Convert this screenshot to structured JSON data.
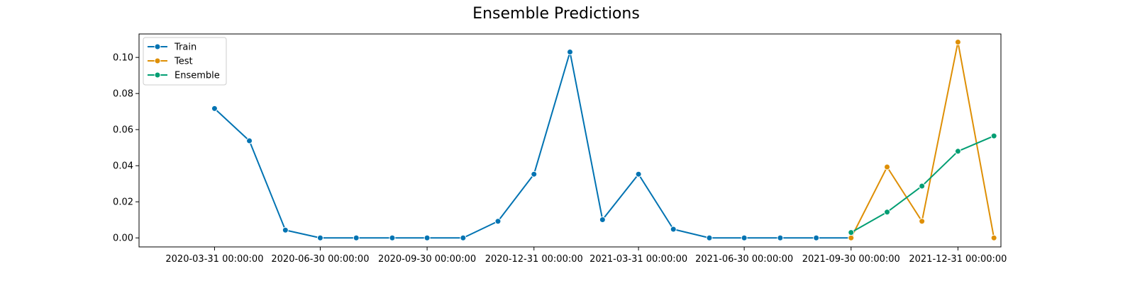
{
  "chart_data": {
    "type": "line",
    "title": "Ensemble Predictions",
    "xlabel": "",
    "ylabel": "",
    "ylim": [
      -0.005,
      0.113
    ],
    "yticks": [
      0.0,
      0.02,
      0.04,
      0.06,
      0.08,
      0.1
    ],
    "ytick_labels": [
      "0.00",
      "0.02",
      "0.04",
      "0.06",
      "0.08",
      "0.10"
    ],
    "xlim": [
      "2020-01-26",
      "2022-02-06"
    ],
    "xticks": [
      "2020-03-31",
      "2020-06-30",
      "2020-09-30",
      "2020-12-31",
      "2021-03-31",
      "2021-06-30",
      "2021-09-30",
      "2021-12-31"
    ],
    "xtick_labels": [
      "2020-03-31 00:00:00",
      "2020-06-30 00:00:00",
      "2020-09-30 00:00:00",
      "2020-12-31 00:00:00",
      "2021-03-31 00:00:00",
      "2021-06-30 00:00:00",
      "2021-09-30 00:00:00",
      "2021-12-31 00:00:00"
    ],
    "grid": false,
    "legend_position": "upper-left",
    "series": [
      {
        "name": "Train",
        "color": "#0173b2",
        "x": [
          "2020-03-31",
          "2020-04-30",
          "2020-05-31",
          "2020-06-30",
          "2020-07-31",
          "2020-08-31",
          "2020-09-30",
          "2020-10-31",
          "2020-11-30",
          "2020-12-31",
          "2021-01-31",
          "2021-02-28",
          "2021-03-31",
          "2021-04-30",
          "2021-05-31",
          "2021-06-30",
          "2021-07-31",
          "2021-08-31",
          "2021-09-30"
        ],
        "y": [
          0.0717,
          0.0538,
          0.0043,
          0.0,
          0.0,
          0.0,
          0.0,
          0.0,
          0.0092,
          0.0353,
          0.103,
          0.0101,
          0.0353,
          0.0048,
          0.0,
          0.0,
          0.0,
          0.0,
          0.0
        ]
      },
      {
        "name": "Test",
        "color": "#de8f05",
        "x": [
          "2021-09-30",
          "2021-10-31",
          "2021-11-30",
          "2021-12-31",
          "2022-01-31"
        ],
        "y": [
          0.0,
          0.0393,
          0.0092,
          0.1085,
          0.0
        ]
      },
      {
        "name": "Ensemble",
        "color": "#029e73",
        "x": [
          "2021-09-30",
          "2021-10-31",
          "2021-11-30",
          "2021-12-31",
          "2022-01-31"
        ],
        "y": [
          0.003,
          0.0143,
          0.0287,
          0.048,
          0.0565
        ]
      }
    ]
  }
}
